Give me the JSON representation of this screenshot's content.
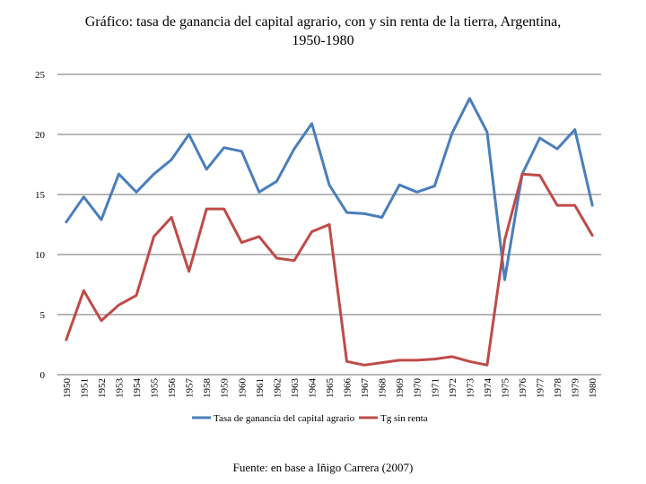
{
  "chart_data": {
    "type": "line",
    "title_line1": "Gráfico: tasa de ganancia del capital agrario, con y sin renta de la tierra, Argentina,",
    "title_line2": "1950-1980",
    "categories": [
      "1950",
      "1951",
      "1952",
      "1953",
      "1954",
      "1955",
      "1956",
      "1957",
      "1958",
      "1959",
      "1960",
      "1961",
      "1962",
      "1963",
      "1964",
      "1965",
      "1966",
      "1967",
      "1968",
      "1969",
      "1970",
      "1971",
      "1972",
      "1973",
      "1974",
      "1975",
      "1976",
      "1977",
      "1978",
      "1979",
      "1980"
    ],
    "ylim": [
      0,
      25
    ],
    "yticks": [
      "0",
      "5",
      "10",
      "15",
      "20",
      "25"
    ],
    "grid": true,
    "legend_position": "bottom",
    "series": [
      {
        "name": "Tasa de ganancia del capital agrario",
        "color": "#4a7ebb",
        "values": [
          12.7,
          14.8,
          12.9,
          16.7,
          15.2,
          16.7,
          17.9,
          20.0,
          17.1,
          18.9,
          18.6,
          15.2,
          16.1,
          18.8,
          20.9,
          15.8,
          13.5,
          13.4,
          13.1,
          15.8,
          15.2,
          15.7,
          20.1,
          23.0,
          20.2,
          7.9,
          16.7,
          19.7,
          18.8,
          20.4,
          14.1
        ]
      },
      {
        "name": "Tg sin renta",
        "color": "#be4b48",
        "values": [
          2.9,
          7.0,
          4.5,
          5.8,
          6.6,
          11.5,
          13.1,
          8.6,
          13.8,
          13.8,
          11.0,
          11.5,
          9.7,
          9.5,
          11.9,
          12.5,
          1.1,
          0.8,
          1.0,
          1.2,
          1.2,
          1.3,
          1.5,
          1.1,
          0.8,
          11.2,
          16.7,
          16.6,
          14.1,
          14.1,
          11.6
        ]
      }
    ],
    "source": "Fuente: en base a Iñigo Carrera (2007)"
  }
}
